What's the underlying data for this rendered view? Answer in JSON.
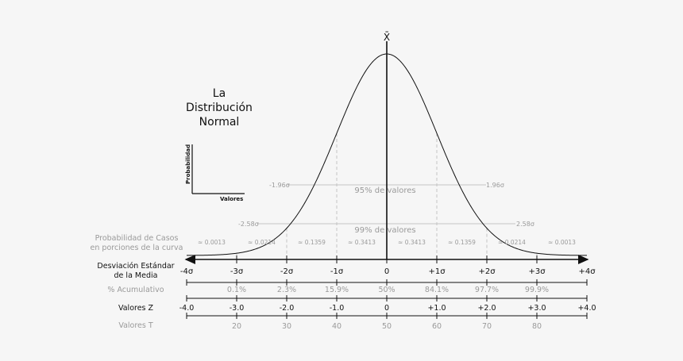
{
  "title_lines": [
    "La",
    "Distribución",
    "Normal"
  ],
  "mean_symbol": "X̄",
  "legend": {
    "y_axis": "Probabilidad",
    "x_axis": "Valores"
  },
  "annotations": {
    "pct95": "95% de valores",
    "pct99": "99% de valores",
    "z196_left": "-1.96σ",
    "z196_right": "1.96σ",
    "z258_left": "-2.58σ",
    "z258_right": "2.58σ"
  },
  "rows": {
    "probability_label_1": "Probabilidad de Casos",
    "probability_label_2": "en porciones de la curva",
    "std_label_1": "Desviación Estándar",
    "std_label_2": "de la Media",
    "cumulative_label": "% Acumulativo",
    "z_label": "Valores Z",
    "t_label": "Valores T"
  },
  "chart_data": {
    "type": "area",
    "distribution": "normal",
    "mean": 0,
    "sd": 1,
    "x_range": [
      -4,
      4
    ],
    "probability_portions": [
      "≈ 0.0013",
      "≈ 0.0214",
      "≈ 0.1359",
      "≈ 0.3413",
      "≈ 0.3413",
      "≈ 0.1359",
      "≈ 0.0214",
      "≈ 0.0013"
    ],
    "sigma_ticks": [
      "-4σ",
      "-3σ",
      "-2σ",
      "-1σ",
      "0",
      "+1σ",
      "+2σ",
      "+3σ",
      "+4σ"
    ],
    "cumulative_percent": [
      "",
      "0.1%",
      "2.3%",
      "15.9%",
      "50%",
      "84.1%",
      "97.7%",
      "99.9%",
      ""
    ],
    "z_values": [
      "-4.0",
      "-3.0",
      "-2.0",
      "-1.0",
      "0",
      "+1.0",
      "+2.0",
      "+3.0",
      "+4.0"
    ],
    "t_values": [
      "",
      "20",
      "30",
      "40",
      "50",
      "60",
      "70",
      "80",
      ""
    ]
  }
}
